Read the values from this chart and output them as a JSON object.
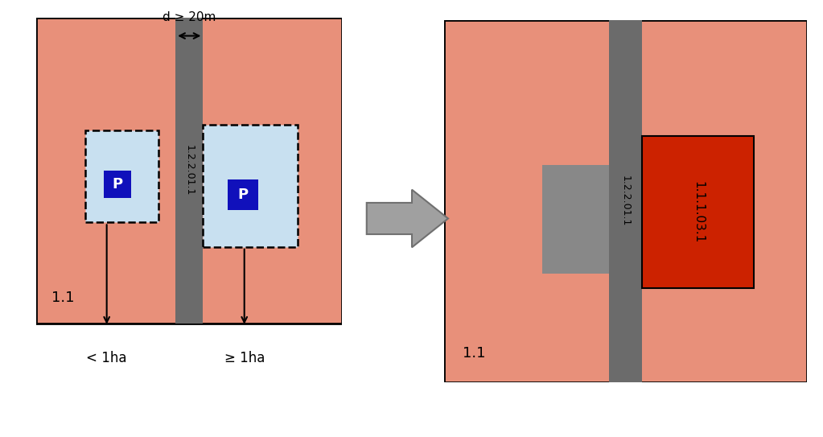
{
  "bg_color": "#E8907A",
  "road_color": "#6B6B6B",
  "parking_color": "#C8E0F0",
  "red_block_color": "#CC2200",
  "gray_block_color": "#888888",
  "title_above": "d ≥ 20m",
  "label_11": "1.1",
  "label_road": "1.2.2.01.1",
  "label_red": "1.1.1.03.1",
  "label_less1ha": "< 1ha",
  "label_geq1ha": "≥ 1ha",
  "P_box_color": "#1010BB",
  "P_text_color": "#FFFFFF",
  "arrow_gray": "#A0A0A0",
  "panel_bg": "#FFFFFF"
}
